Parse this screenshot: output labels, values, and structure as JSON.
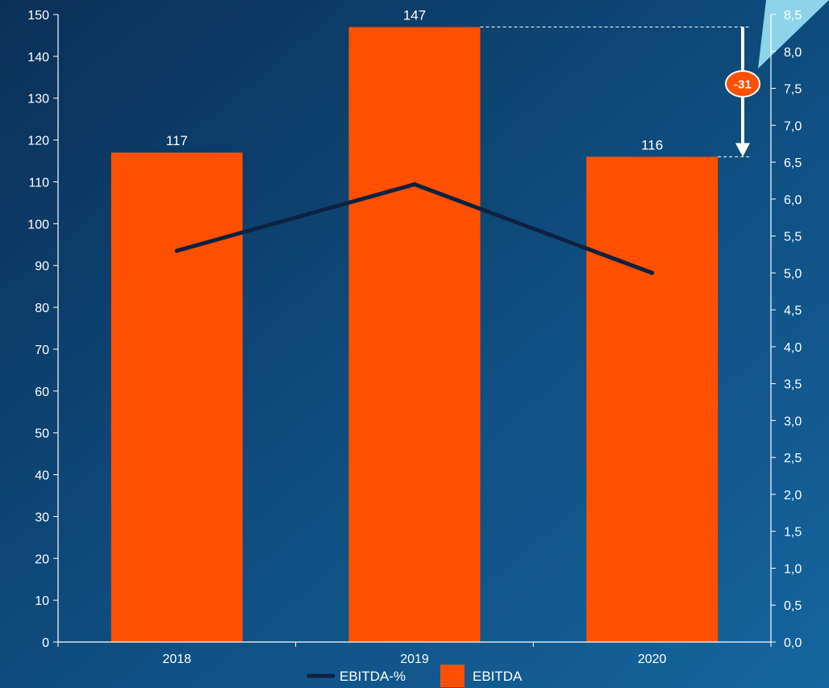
{
  "chart_data": {
    "type": "bar",
    "categories": [
      "2018",
      "2019",
      "2020"
    ],
    "series": [
      {
        "name": "EBITDA",
        "type": "bar",
        "axis": "left",
        "values": [
          117,
          147,
          116
        ],
        "color": "#ff5000"
      },
      {
        "name": "EBITDA-%",
        "type": "line",
        "axis": "right",
        "values": [
          5.3,
          6.2,
          5.0
        ],
        "color": "#0d2140"
      }
    ],
    "data_labels": [
      "117",
      "147",
      "116"
    ],
    "left_axis": {
      "ylim": [
        0,
        150
      ],
      "ticks": [
        "0",
        "10",
        "20",
        "30",
        "40",
        "50",
        "60",
        "70",
        "80",
        "90",
        "100",
        "110",
        "120",
        "130",
        "140",
        "150"
      ]
    },
    "right_axis": {
      "ylim": [
        0,
        8.5
      ],
      "ticks": [
        "0,0",
        "0,5",
        "1,0",
        "1,5",
        "2,0",
        "2,5",
        "3,0",
        "3,5",
        "4,0",
        "4,5",
        "5,0",
        "5,5",
        "6,0",
        "6,5",
        "7,0",
        "7,5",
        "8,0",
        "8,5"
      ]
    },
    "annotation": {
      "label": "-31",
      "from": 147,
      "to": 116,
      "badge_color": "#ff5000"
    },
    "legend": {
      "placement": "bottom",
      "entries": [
        "EBITDA-%",
        "EBITDA"
      ]
    },
    "grid": false,
    "background": [
      "#0a3058",
      "#1466a0"
    ],
    "accent_shape_color": "#8fd3ea"
  }
}
